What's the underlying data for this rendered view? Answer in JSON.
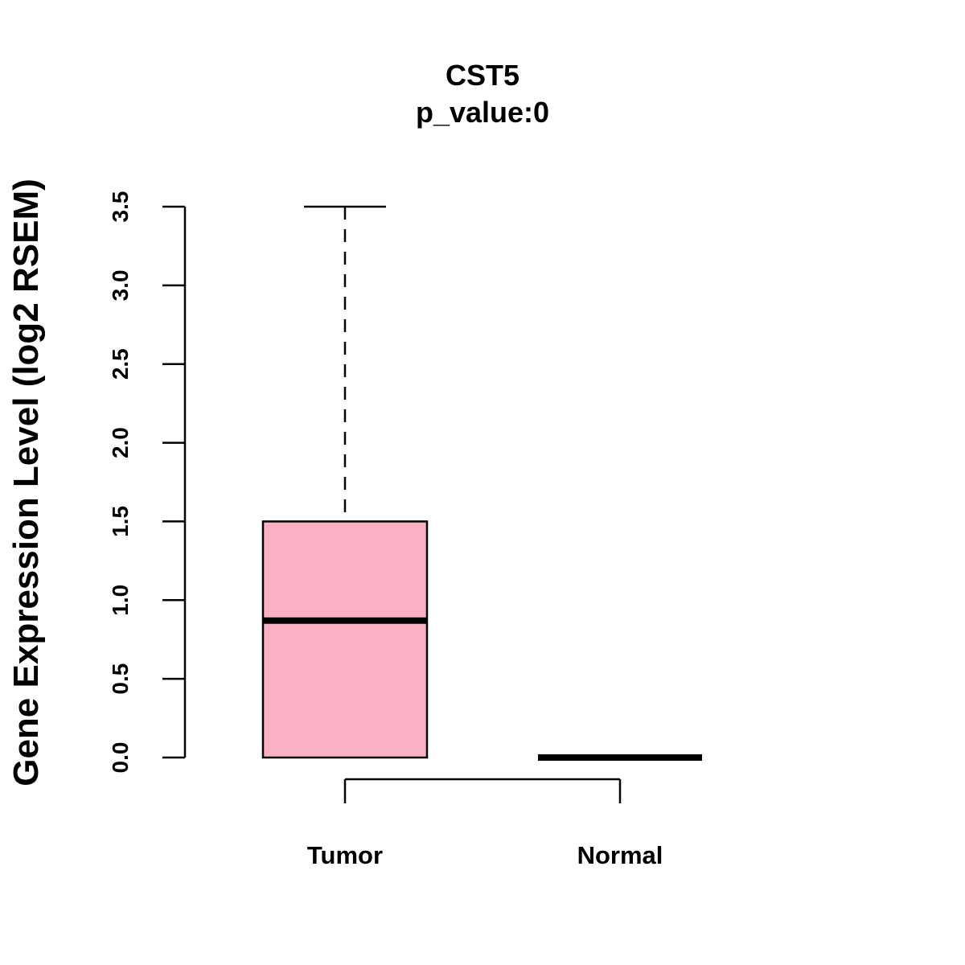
{
  "chart_data": {
    "type": "boxplot",
    "title": "CST5",
    "subtitle": "p_value:0",
    "xlabel": "",
    "ylabel": "Gene Expression Level (log2 RSEM)",
    "ylim": [
      0,
      3.5
    ],
    "yticks": [
      0.0,
      0.5,
      1.0,
      1.5,
      2.0,
      2.5,
      3.0,
      3.5
    ],
    "ytick_labels": [
      "0.0",
      "0.5",
      "1.0",
      "1.5",
      "2.0",
      "2.5",
      "3.0",
      "3.5"
    ],
    "grid": false,
    "categories": [
      "Tumor",
      "Normal"
    ],
    "boxes": [
      {
        "name": "Tumor",
        "min": 0.0,
        "q1": 0.0,
        "median": 0.87,
        "q3": 1.5,
        "max": 3.5,
        "fill": "#fbb1c3"
      },
      {
        "name": "Normal",
        "min": 0.0,
        "q1": 0.0,
        "median": 0.0,
        "q3": 0.0,
        "max": 0.0,
        "fill": "#fbb1c3"
      }
    ],
    "comparison_bracket": {
      "between": [
        "Tumor",
        "Normal"
      ]
    }
  }
}
